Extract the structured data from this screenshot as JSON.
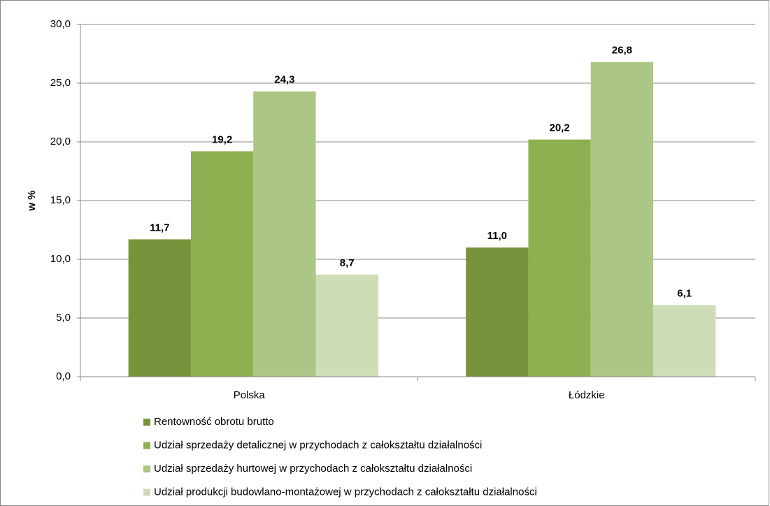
{
  "chart_data": {
    "type": "bar",
    "y_label": "w %",
    "categories": [
      "Polska",
      "Łódzkie"
    ],
    "series": [
      {
        "name": "Rentowność obrotu brutto",
        "color": "#77933c",
        "values": [
          11.7,
          11.0
        ],
        "value_labels": [
          "11,7",
          "11,0"
        ]
      },
      {
        "name": "Udział sprzedaży detalicznej w przychodach z całokształtu działalności",
        "color": "#8fb050",
        "values": [
          19.2,
          20.2
        ],
        "value_labels": [
          "19,2",
          "20,2"
        ]
      },
      {
        "name": "Udział sprzedaży hurtowej w przychodach z całokształtu działalności",
        "color": "#acc685",
        "values": [
          24.3,
          26.8
        ],
        "value_labels": [
          "24,3",
          "26,8"
        ]
      },
      {
        "name": "Udział produkcji budowlano-montażowej w przychodach z całokształtu działalności",
        "color": "#cfdcb8",
        "values": [
          8.7,
          6.1
        ],
        "value_labels": [
          "8,7",
          "6,1"
        ]
      }
    ],
    "ylim": [
      0,
      30
    ],
    "yticks": [
      {
        "value": 0,
        "label": "0,0"
      },
      {
        "value": 5,
        "label": "5,0"
      },
      {
        "value": 10,
        "label": "10,0"
      },
      {
        "value": 15,
        "label": "15,0"
      },
      {
        "value": 20,
        "label": "20,0"
      },
      {
        "value": 25,
        "label": "25,0"
      },
      {
        "value": 30,
        "label": "30,0"
      }
    ],
    "grid": true,
    "legend": "bottom"
  }
}
